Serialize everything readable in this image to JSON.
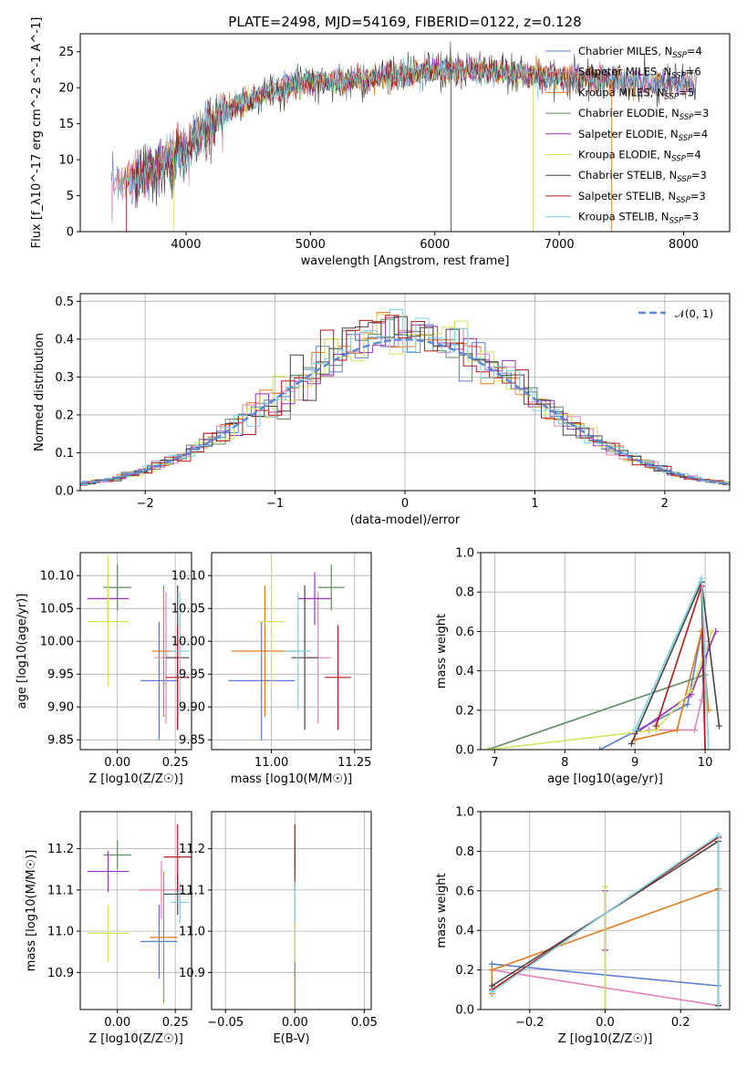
{
  "colors": {
    "Chabrier MILES": "#5b7fd6",
    "Salpeter MILES": "#e084b5",
    "Kroupa MILES": "#e07b1f",
    "Chabrier ELODIE": "#5f8b63",
    "Salpeter ELODIE": "#9a33b8",
    "Kroupa ELODIE": "#d4e35e",
    "Chabrier STELIB": "#444444",
    "Salpeter STELIB": "#b01a1a",
    "Kroupa STELIB": "#7fd0df"
  },
  "chart_data": [
    {
      "id": "spectrum",
      "type": "line",
      "title": "PLATE=2498, MJD=54169, FIBERID=0122, z=0.128",
      "xlabel": "wavelength [Angstrom, rest frame]",
      "ylabel": "Flux [f_λ10^-17 erg cm^-2 s^-1 A^-1]",
      "xlim": [
        3150,
        8370
      ],
      "ylim": [
        0,
        27.5
      ],
      "xticks": [
        "4000",
        "5000",
        "6000",
        "7000",
        "8000"
      ],
      "yticks": [
        "0",
        "5",
        "10",
        "15",
        "20",
        "25"
      ],
      "grid": false,
      "legend_position": "top-right",
      "legend": [
        {
          "name": "Chabrier MILES",
          "nssp": "4"
        },
        {
          "name": "Salpeter MILES",
          "nssp": "6"
        },
        {
          "name": "Kroupa MILES",
          "nssp": "5"
        },
        {
          "name": "Chabrier ELODIE",
          "nssp": "3"
        },
        {
          "name": "Salpeter ELODIE",
          "nssp": "4"
        },
        {
          "name": "Kroupa ELODIE",
          "nssp": "4"
        },
        {
          "name": "Chabrier STELIB",
          "nssp": "3"
        },
        {
          "name": "Salpeter STELIB",
          "nssp": "3"
        },
        {
          "name": "Kroupa STELIB",
          "nssp": "3"
        }
      ],
      "continuum": [
        [
          3400,
          6.5
        ],
        [
          3600,
          7.5
        ],
        [
          3800,
          9.5
        ],
        [
          4000,
          11.5
        ],
        [
          4200,
          15
        ],
        [
          4400,
          17.5
        ],
        [
          4600,
          19
        ],
        [
          4800,
          20
        ],
        [
          5000,
          20.8
        ],
        [
          5300,
          21
        ],
        [
          5600,
          21.5
        ],
        [
          6000,
          22.5
        ],
        [
          6300,
          22.5
        ],
        [
          6600,
          22
        ],
        [
          7000,
          21.5
        ],
        [
          7400,
          21
        ],
        [
          7800,
          20.5
        ],
        [
          8100,
          20.2
        ]
      ],
      "vertical_lines": [
        6130,
        6790,
        7420
      ]
    },
    {
      "id": "residuals",
      "type": "histogram",
      "xlabel": "(data-model)/error",
      "ylabel": "Normed distribution",
      "xlim": [
        -2.5,
        2.5
      ],
      "ylim": [
        0,
        0.52
      ],
      "xticks": [
        "−2",
        "−1",
        "0",
        "1",
        "2"
      ],
      "yticks": [
        "0.0",
        "0.1",
        "0.2",
        "0.3",
        "0.4",
        "0.5"
      ],
      "grid": true,
      "legend_position": "top-right",
      "legend_label": "𝒩(0, 1)",
      "bin_width": 0.1
    },
    {
      "id": "age-vs-z",
      "type": "errorbar",
      "xlabel": "Z [log10(Z/Z☉)]",
      "ylabel": "age [log10(age/yr)]",
      "xlim": [
        -0.16,
        0.32
      ],
      "ylim": [
        9.835,
        10.135
      ],
      "xticks": [
        "0.00",
        "0.25"
      ],
      "yticks": [
        "9.85",
        "9.90",
        "9.95",
        "10.00",
        "10.05",
        "10.10"
      ],
      "grid": true,
      "points": [
        {
          "series": "Chabrier MILES",
          "x": 0.18,
          "xerr": 0.08,
          "y": 9.94,
          "yerr": 0.09
        },
        {
          "series": "Salpeter MILES",
          "x": 0.21,
          "xerr": 0.05,
          "y": 9.975,
          "yerr": 0.1
        },
        {
          "series": "Kroupa MILES",
          "x": 0.2,
          "xerr": 0.05,
          "y": 9.985,
          "yerr": 0.1
        },
        {
          "series": "Chabrier ELODIE",
          "x": 0.0,
          "xerr": 0.06,
          "y": 10.082,
          "yerr": 0.035
        },
        {
          "series": "Salpeter ELODIE",
          "x": -0.04,
          "xerr": 0.09,
          "y": 10.065,
          "yerr": 0.04
        },
        {
          "series": "Kroupa ELODIE",
          "x": -0.04,
          "xerr": 0.09,
          "y": 10.03,
          "yerr": 0.1
        },
        {
          "series": "Chabrier STELIB",
          "x": 0.26,
          "xerr": 0.05,
          "y": 9.975,
          "yerr": 0.11
        },
        {
          "series": "Salpeter STELIB",
          "x": 0.26,
          "xerr": 0.05,
          "y": 9.945,
          "yerr": 0.08
        },
        {
          "series": "Kroupa STELIB",
          "x": 0.27,
          "xerr": 0.04,
          "y": 9.985,
          "yerr": 0.09
        }
      ]
    },
    {
      "id": "age-vs-mass",
      "type": "errorbar",
      "xlabel": "mass [log10(M/M☉)]",
      "ylabel": "",
      "xlim": [
        10.82,
        11.3
      ],
      "ylim": [
        9.835,
        10.135
      ],
      "xticks": [
        "11.00",
        "11.25"
      ],
      "yticks": [
        "9.85",
        "9.90",
        "9.95",
        "10.00",
        "10.05",
        "10.10"
      ],
      "grid": true,
      "points": [
        {
          "series": "Chabrier MILES",
          "x": 10.97,
          "xerr": 0.1,
          "y": 9.94,
          "yerr": 0.09
        },
        {
          "series": "Salpeter MILES",
          "x": 11.14,
          "xerr": 0.04,
          "y": 9.975,
          "yerr": 0.1
        },
        {
          "series": "Kroupa MILES",
          "x": 10.98,
          "xerr": 0.1,
          "y": 9.985,
          "yerr": 0.1
        },
        {
          "series": "Chabrier ELODIE",
          "x": 11.18,
          "xerr": 0.04,
          "y": 10.082,
          "yerr": 0.035
        },
        {
          "series": "Salpeter ELODIE",
          "x": 11.13,
          "xerr": 0.05,
          "y": 10.065,
          "yerr": 0.04
        },
        {
          "series": "Kroupa ELODIE",
          "x": 11.0,
          "xerr": 0.04,
          "y": 10.03,
          "yerr": 0.1
        },
        {
          "series": "Chabrier STELIB",
          "x": 11.1,
          "xerr": 0.04,
          "y": 9.975,
          "yerr": 0.11
        },
        {
          "series": "Salpeter STELIB",
          "x": 11.2,
          "xerr": 0.04,
          "y": 9.945,
          "yerr": 0.08
        },
        {
          "series": "Kroupa STELIB",
          "x": 11.08,
          "xerr": 0.04,
          "y": 9.985,
          "yerr": 0.09
        }
      ]
    },
    {
      "id": "mass-weight-vs-age",
      "type": "line",
      "xlabel": "age [log10(age/yr)]",
      "ylabel": "mass weight",
      "xlim": [
        6.8,
        10.35
      ],
      "ylim": [
        0,
        1
      ],
      "xticks": [
        "7",
        "8",
        "9",
        "10"
      ],
      "yticks": [
        "0.0",
        "0.2",
        "0.4",
        "0.6",
        "0.8",
        "1.0"
      ],
      "grid": true,
      "series": [
        {
          "name": "Chabrier MILES",
          "points": [
            [
              8.5,
              0.0
            ],
            [
              9.75,
              0.23
            ],
            [
              9.95,
              0.6
            ],
            [
              10.0,
              0.0
            ]
          ]
        },
        {
          "name": "Salpeter MILES",
          "points": [
            [
              9.2,
              0.1
            ],
            [
              9.85,
              0.1
            ],
            [
              9.95,
              0.25
            ],
            [
              10.05,
              0.55
            ]
          ]
        },
        {
          "name": "Kroupa MILES",
          "points": [
            [
              9.0,
              0.05
            ],
            [
              9.6,
              0.1
            ],
            [
              9.95,
              0.6
            ],
            [
              10.05,
              0.2
            ]
          ]
        },
        {
          "name": "Chabrier ELODIE",
          "points": [
            [
              6.9,
              0.0
            ],
            [
              10.0,
              0.38
            ]
          ]
        },
        {
          "name": "Salpeter ELODIE",
          "points": [
            [
              9.0,
              0.08
            ],
            [
              9.8,
              0.28
            ],
            [
              10.15,
              0.6
            ]
          ]
        },
        {
          "name": "Kroupa ELODIE",
          "points": [
            [
              6.9,
              0.0
            ],
            [
              9.3,
              0.1
            ],
            [
              9.8,
              0.3
            ],
            [
              10.1,
              0.6
            ]
          ]
        },
        {
          "name": "Chabrier STELIB",
          "points": [
            [
              8.95,
              0.03
            ],
            [
              9.95,
              0.85
            ],
            [
              10.2,
              0.12
            ]
          ]
        },
        {
          "name": "Salpeter STELIB",
          "points": [
            [
              9.3,
              0.12
            ],
            [
              9.95,
              0.83
            ],
            [
              10.0,
              0.0
            ]
          ]
        },
        {
          "name": "Kroupa STELIB",
          "points": [
            [
              9.0,
              0.1
            ],
            [
              9.95,
              0.87
            ],
            [
              10.05,
              0.0
            ]
          ]
        }
      ]
    },
    {
      "id": "mass-vs-z",
      "type": "errorbar",
      "xlabel": "Z [log10(Z/Z☉)]",
      "ylabel": "mass [log10(M/M☉)]",
      "xlim": [
        -0.16,
        0.32
      ],
      "ylim": [
        10.81,
        11.29
      ],
      "xticks": [
        "0.00",
        "0.25"
      ],
      "yticks": [
        "10.9",
        "11.0",
        "11.1",
        "11.2"
      ],
      "grid": true,
      "points": [
        {
          "series": "Chabrier MILES",
          "x": 0.18,
          "xerr": 0.08,
          "y": 10.975,
          "yerr": 0.09
        },
        {
          "series": "Salpeter MILES",
          "x": 0.19,
          "xerr": 0.1,
          "y": 11.1,
          "yerr": 0.07
        },
        {
          "series": "Kroupa MILES",
          "x": 0.2,
          "xerr": 0.06,
          "y": 10.985,
          "yerr": 0.16
        },
        {
          "series": "Chabrier ELODIE",
          "x": 0.0,
          "xerr": 0.06,
          "y": 11.185,
          "yerr": 0.035
        },
        {
          "series": "Salpeter ELODIE",
          "x": -0.04,
          "xerr": 0.09,
          "y": 11.145,
          "yerr": 0.05
        },
        {
          "series": "Kroupa ELODIE",
          "x": -0.04,
          "xerr": 0.09,
          "y": 10.995,
          "yerr": 0.07
        },
        {
          "series": "Chabrier STELIB",
          "x": 0.26,
          "xerr": 0.06,
          "y": 11.09,
          "yerr": 0.05
        },
        {
          "series": "Salpeter STELIB",
          "x": 0.26,
          "xerr": 0.06,
          "y": 11.18,
          "yerr": 0.08
        },
        {
          "series": "Kroupa STELIB",
          "x": 0.27,
          "xerr": 0.04,
          "y": 11.07,
          "yerr": 0.05
        }
      ]
    },
    {
      "id": "mass-vs-ebv",
      "type": "errorbar",
      "xlabel": "E(B-V)",
      "ylabel": "",
      "xlim": [
        -0.06,
        0.055
      ],
      "ylim": [
        10.81,
        11.29
      ],
      "xticks": [
        "−0.05",
        "0.00",
        "0.05"
      ],
      "yticks": [
        "10.9",
        "11.0",
        "11.1",
        "11.2"
      ],
      "grid": true,
      "points": [
        {
          "series": "Chabrier MILES",
          "x": 0.0,
          "xerr": 0.0,
          "y": 10.975,
          "yerr": 0.09
        },
        {
          "series": "Kroupa MILES",
          "x": 0.0,
          "xerr": 0.0,
          "y": 10.95,
          "yerr": 0.14
        },
        {
          "series": "Chabrier ELODIE",
          "x": 0.0,
          "xerr": 0.0,
          "y": 11.185,
          "yerr": 0.035
        },
        {
          "series": "Kroupa ELODIE",
          "x": 0.0,
          "xerr": 0.0,
          "y": 10.995,
          "yerr": 0.07
        },
        {
          "series": "Salpeter STELIB",
          "x": 0.0,
          "xerr": 0.0,
          "y": 11.18,
          "yerr": 0.08
        },
        {
          "series": "Kroupa STELIB",
          "x": 0.0,
          "xerr": 0.0,
          "y": 11.07,
          "yerr": 0.05
        }
      ]
    },
    {
      "id": "mass-weight-vs-z",
      "type": "line",
      "xlabel": "Z [log10(Z/Z☉)]",
      "ylabel": "mass weight",
      "xlim": [
        -0.33,
        0.33
      ],
      "ylim": [
        0,
        1
      ],
      "xticks": [
        "−0.2",
        "0.0",
        "0.2"
      ],
      "yticks": [
        "0.0",
        "0.2",
        "0.4",
        "0.6",
        "0.8",
        "1.0"
      ],
      "grid": true,
      "series": [
        {
          "name": "Chabrier MILES",
          "points": [
            [
              -0.3,
              0.23
            ],
            [
              0.3,
              0.12
            ]
          ]
        },
        {
          "name": "Salpeter MILES",
          "points": [
            [
              -0.3,
              0.2
            ],
            [
              0.3,
              0.02
            ]
          ]
        },
        {
          "name": "Kroupa MILES",
          "points": [
            [
              -0.3,
              0.08
            ],
            [
              -0.3,
              0.2
            ],
            [
              0.3,
              0.61
            ],
            [
              0.3,
              0.0
            ]
          ]
        },
        {
          "name": "Chabrier ELODIE",
          "points": [
            [
              0.0,
              0.0
            ],
            [
              0.0,
              0.62
            ]
          ]
        },
        {
          "name": "Salpeter ELODIE",
          "points": [
            [
              0.0,
              0.3
            ],
            [
              0.0,
              0.6
            ]
          ]
        },
        {
          "name": "Kroupa ELODIE",
          "points": [
            [
              0.0,
              0.0
            ],
            [
              0.0,
              0.62
            ]
          ]
        },
        {
          "name": "Chabrier STELIB",
          "points": [
            [
              -0.3,
              0.12
            ],
            [
              0.3,
              0.85
            ],
            [
              0.3,
              0.02
            ]
          ]
        },
        {
          "name": "Salpeter STELIB",
          "points": [
            [
              -0.3,
              0.1
            ],
            [
              0.3,
              0.87
            ]
          ]
        },
        {
          "name": "Kroupa STELIB",
          "points": [
            [
              -0.3,
              0.09
            ],
            [
              0.3,
              0.88
            ],
            [
              0.3,
              0.0
            ]
          ]
        }
      ]
    }
  ]
}
